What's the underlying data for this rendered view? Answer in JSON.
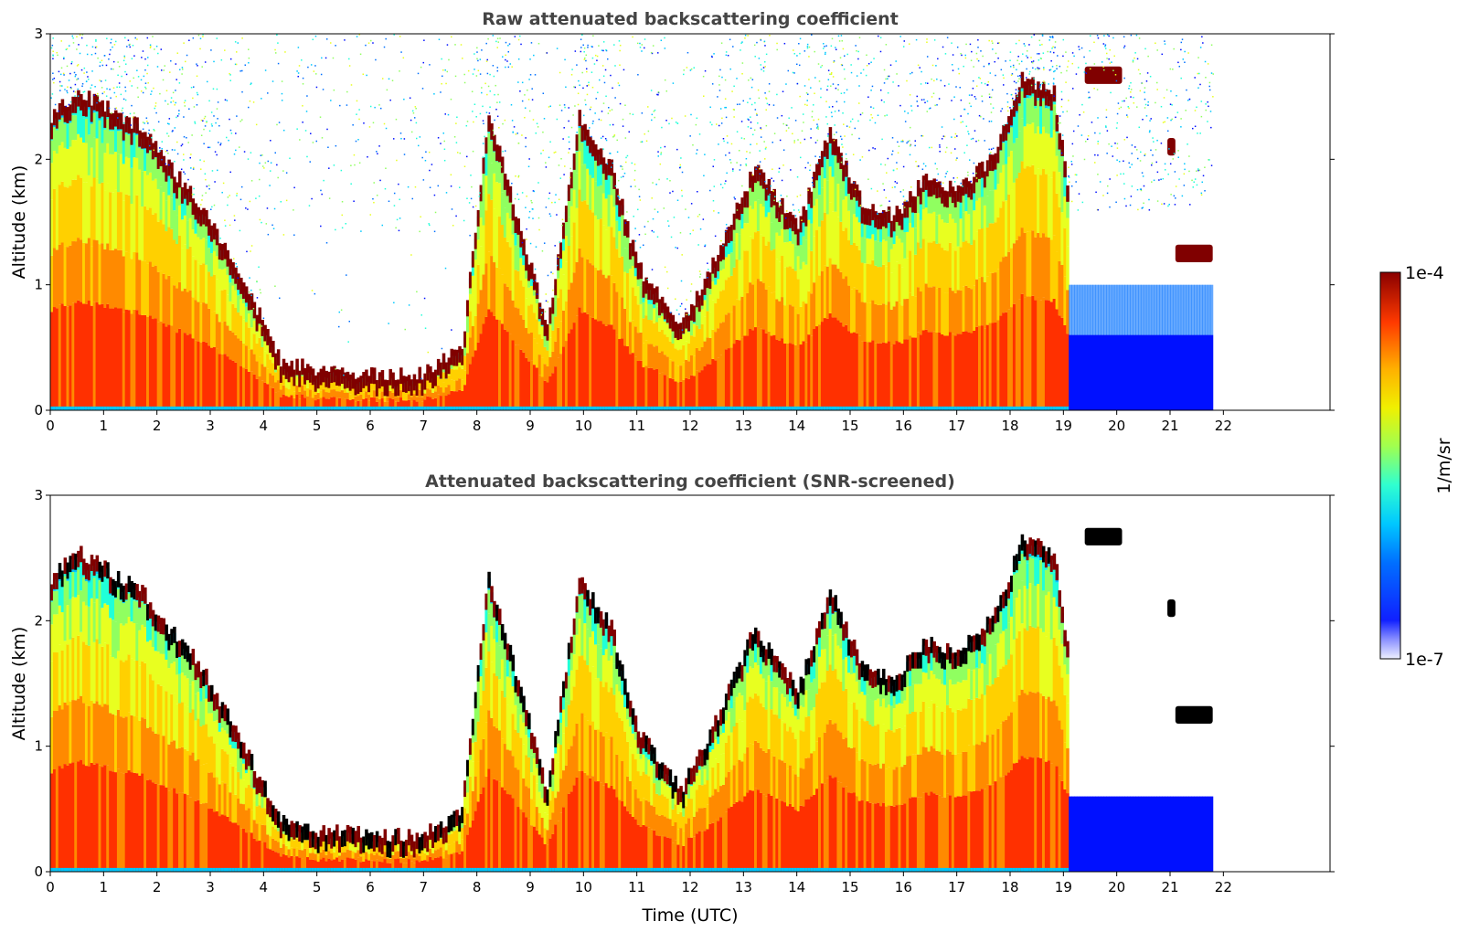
{
  "colors": {
    "jet": [
      "#0000a0",
      "#0010ff",
      "#0070ff",
      "#00c8ff",
      "#20ffd8",
      "#90ff60",
      "#e8ff20",
      "#ffd000",
      "#ff8a00",
      "#ff3000",
      "#b00000",
      "#800000"
    ],
    "black": "#000000",
    "panel_background": "#ffffff"
  },
  "chart_data": [
    {
      "type": "heatmap",
      "title": "Raw attenuated backscattering coefficient",
      "xlabel": "",
      "ylabel": "Altitude (km)",
      "xlim": [
        0,
        24
      ],
      "ylim": [
        0,
        3
      ],
      "x_ticks": [
        "0",
        "1",
        "2",
        "3",
        "4",
        "5",
        "6",
        "7",
        "8",
        "9",
        "10",
        "11",
        "12",
        "13",
        "14",
        "15",
        "16",
        "17",
        "18",
        "19",
        "20",
        "21",
        "22"
      ],
      "y_ticks": [
        "0",
        "1",
        "2",
        "3"
      ],
      "data_end_time": 21.8,
      "cloud_tops_km": [
        [
          0.0,
          2.3
        ],
        [
          0.5,
          2.5
        ],
        [
          0.9,
          2.4
        ],
        [
          1.3,
          2.3
        ],
        [
          1.7,
          2.2
        ],
        [
          2.2,
          1.9
        ],
        [
          2.8,
          1.6
        ],
        [
          3.3,
          1.2
        ],
        [
          3.8,
          0.8
        ],
        [
          4.3,
          0.35
        ],
        [
          5.0,
          0.28
        ],
        [
          6.0,
          0.25
        ],
        [
          7.0,
          0.25
        ],
        [
          7.7,
          0.45
        ],
        [
          8.2,
          2.3
        ],
        [
          8.8,
          1.4
        ],
        [
          9.3,
          0.6
        ],
        [
          9.9,
          2.3
        ],
        [
          10.5,
          1.9
        ],
        [
          11.0,
          1.1
        ],
        [
          11.8,
          0.6
        ],
        [
          12.5,
          1.2
        ],
        [
          13.2,
          1.9
        ],
        [
          14.0,
          1.4
        ],
        [
          14.6,
          2.2
        ],
        [
          15.2,
          1.6
        ],
        [
          15.8,
          1.5
        ],
        [
          16.4,
          1.8
        ],
        [
          17.0,
          1.7
        ],
        [
          17.7,
          2.0
        ],
        [
          18.2,
          2.6
        ],
        [
          18.8,
          2.5
        ],
        [
          19.1,
          1.6
        ]
      ],
      "elevated_layers": [
        {
          "t0": 19.4,
          "t1": 20.1,
          "z_km": 2.67
        },
        {
          "t0": 20.95,
          "t1": 21.1,
          "z_km": 2.1
        },
        {
          "t0": 21.1,
          "t1": 21.8,
          "z_km": 1.25
        }
      ]
    },
    {
      "type": "heatmap",
      "title": "Attenuated backscattering coefficient (SNR-screened)",
      "xlabel": "Time (UTC)",
      "ylabel": "Altitude (km)",
      "xlim": [
        0,
        24
      ],
      "ylim": [
        0,
        3
      ],
      "x_ticks": [
        "0",
        "1",
        "2",
        "3",
        "4",
        "5",
        "6",
        "7",
        "8",
        "9",
        "10",
        "11",
        "12",
        "13",
        "14",
        "15",
        "16",
        "17",
        "18",
        "19",
        "20",
        "21",
        "22"
      ],
      "y_ticks": [
        "0",
        "1",
        "2",
        "3"
      ],
      "data_end_time": 21.8,
      "screened": true
    }
  ],
  "colorbar": {
    "label": "1/m/sr",
    "max_label": "1e-4",
    "min_label": "1e-7",
    "colormap": "jet",
    "scale": "log"
  }
}
